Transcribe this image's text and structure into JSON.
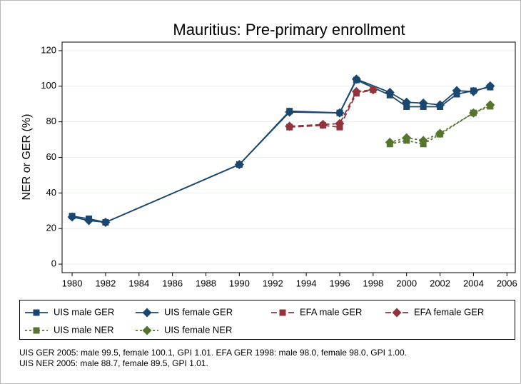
{
  "chart_data": {
    "type": "line",
    "title": "Mauritius: Pre-primary enrollment",
    "y_label": "NER or GER (%)",
    "xlim": [
      1979.4,
      2006.5
    ],
    "ylim": [
      -4.8,
      124.8
    ],
    "xticks": [
      1980,
      1982,
      1984,
      1986,
      1988,
      1990,
      1992,
      1994,
      1996,
      1998,
      2000,
      2002,
      2004,
      2006
    ],
    "yticks": [
      0,
      20,
      40,
      60,
      80,
      100,
      120
    ],
    "grid": true,
    "series": [
      {
        "name": "UIS male GER",
        "color": "#1a476f",
        "marker": "square",
        "dash": false,
        "x": [
          1980,
          1981,
          1982,
          1990,
          1993,
          1996,
          1997,
          1999,
          2000,
          2001,
          2002,
          2003,
          2004,
          2005
        ],
        "values": [
          27,
          25.5,
          23.5,
          56,
          86,
          85,
          103.5,
          95,
          88.5,
          88.5,
          88.5,
          95.5,
          97.5,
          99.5
        ]
      },
      {
        "name": "UIS female GER",
        "color": "#1a476f",
        "marker": "diamond",
        "dash": false,
        "x": [
          1980,
          1981,
          1982,
          1990,
          1993,
          1996,
          1997,
          1999,
          2000,
          2001,
          2002,
          2003,
          2004,
          2005
        ],
        "values": [
          26.5,
          24.5,
          23.5,
          56,
          85.5,
          85,
          104,
          96.5,
          91,
          90.5,
          89.5,
          97.5,
          97,
          100.1
        ]
      },
      {
        "name": "EFA male GER",
        "color": "#90353b",
        "marker": "square",
        "dash": true,
        "x": [
          1993,
          1995,
          1996,
          1997,
          1998
        ],
        "values": [
          77,
          78,
          77,
          96,
          98.0
        ]
      },
      {
        "name": "EFA female GER",
        "color": "#90353b",
        "marker": "diamond",
        "dash": true,
        "x": [
          1993,
          1995,
          1996,
          1997,
          1998
        ],
        "values": [
          77.5,
          78.5,
          79,
          97,
          98.0
        ]
      },
      {
        "name": "UIS male NER",
        "color": "#55752f",
        "marker": "square",
        "dash": true,
        "x": [
          1999,
          2000,
          2001,
          2002,
          2004,
          2005
        ],
        "values": [
          67.5,
          69.5,
          67.5,
          73,
          85,
          88.7
        ]
      },
      {
        "name": "UIS female NER",
        "color": "#55752f",
        "marker": "diamond",
        "dash": true,
        "x": [
          1999,
          2000,
          2001,
          2002,
          2004,
          2005
        ],
        "values": [
          68.5,
          71,
          69.5,
          73.5,
          85,
          89.5
        ]
      }
    ],
    "notes": [
      "UIS GER 2005: male 99.5, female 100.1, GPI 1.01. EFA GER 1998: male 98.0, female 98.0, GPI 1.00.",
      "UIS NER 2005: male 88.7, female 89.5, GPI 1.01."
    ]
  }
}
